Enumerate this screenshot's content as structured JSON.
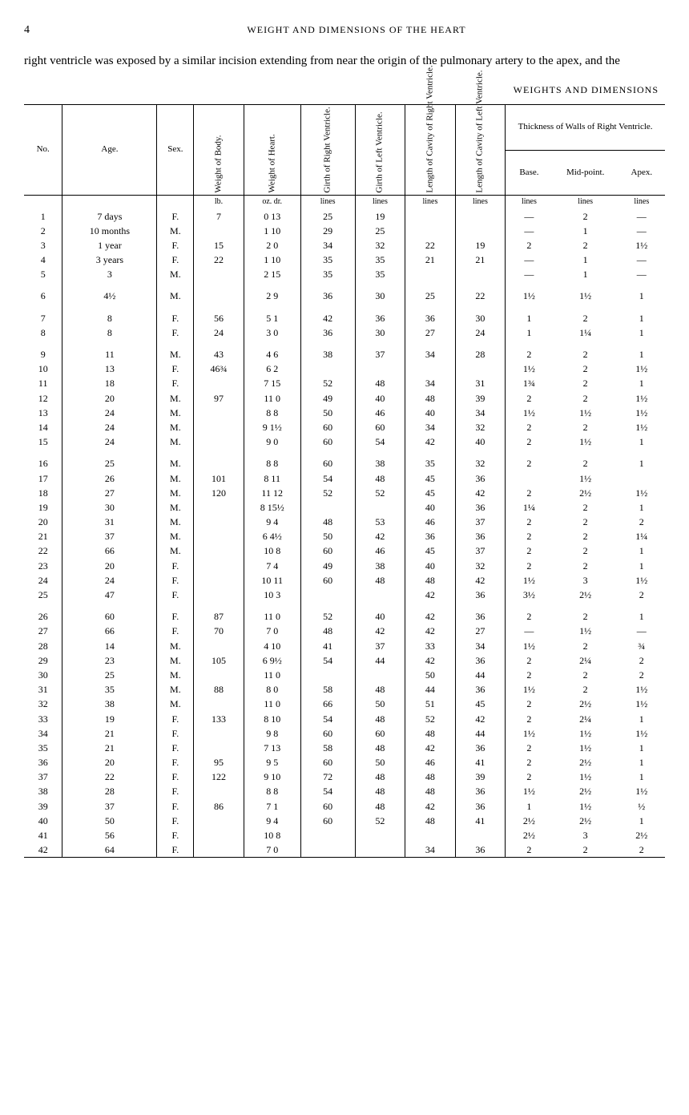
{
  "page_number": "4",
  "running_head": "WEIGHT AND DIMENSIONS OF THE HEART",
  "paragraph": "right ventricle was exposed by a similar incision extending from near the origin of the pulmonary artery to the apex, and the",
  "table_title": "WEIGHTS AND DIMENSIONS",
  "columns": {
    "no": "No.",
    "age": "Age.",
    "sex": "Sex.",
    "wbody": "Weight of Body.",
    "wheart": "Weight of Heart.",
    "girth_r": "Girth of Right Ventricle.",
    "girth_l": "Girth of Left Ventricle.",
    "len_r": "Length of Cavity of Right Ventricle.",
    "len_l": "Length of Cavity of Left Ventricle.",
    "thick_group": "Thickness of Walls of Right Ventricle.",
    "base": "Base.",
    "mid": "Mid-point.",
    "apex": "Apex."
  },
  "units": {
    "wbody": "lb.",
    "wheart": "oz.  dr.",
    "girth_r": "lines",
    "girth_l": "lines",
    "len_r": "lines",
    "len_l": "lines",
    "base": "lines",
    "mid": "lines",
    "apex": "lines"
  },
  "groups": [
    [
      {
        "no": "1",
        "age": "7 days",
        "sex": "F.",
        "wbody": "7",
        "wheart": "0 13",
        "gr": "25",
        "gl": "19",
        "lr": "",
        "ll": "",
        "base": "—",
        "mid": "2",
        "apex": "—"
      },
      {
        "no": "2",
        "age": "10 months",
        "sex": "M.",
        "wbody": "",
        "wheart": "1 10",
        "gr": "29",
        "gl": "25",
        "lr": "",
        "ll": "",
        "base": "—",
        "mid": "1",
        "apex": "—"
      },
      {
        "no": "3",
        "age": "1 year",
        "sex": "F.",
        "wbody": "15",
        "wheart": "2  0",
        "gr": "34",
        "gl": "32",
        "lr": "22",
        "ll": "19",
        "base": "2",
        "mid": "2",
        "apex": "1½"
      },
      {
        "no": "4",
        "age": "3 years",
        "sex": "F.",
        "wbody": "22",
        "wheart": "1 10",
        "gr": "35",
        "gl": "35",
        "lr": "21",
        "ll": "21",
        "base": "—",
        "mid": "1",
        "apex": "—"
      },
      {
        "no": "5",
        "age": "3",
        "sex": "M.",
        "wbody": "",
        "wheart": "2 15",
        "gr": "35",
        "gl": "35",
        "lr": "",
        "ll": "",
        "base": "—",
        "mid": "1",
        "apex": "—"
      }
    ],
    [
      {
        "no": "6",
        "age": "4½",
        "sex": "M.",
        "wbody": "",
        "wheart": "2  9",
        "gr": "36",
        "gl": "30",
        "lr": "25",
        "ll": "22",
        "base": "1½",
        "mid": "1½",
        "apex": "1"
      }
    ],
    [
      {
        "no": "7",
        "age": "8",
        "sex": "F.",
        "wbody": "56",
        "wheart": "5  1",
        "gr": "42",
        "gl": "36",
        "lr": "36",
        "ll": "30",
        "base": "1",
        "mid": "2",
        "apex": "1"
      },
      {
        "no": "8",
        "age": "8",
        "sex": "F.",
        "wbody": "24",
        "wheart": "3  0",
        "gr": "36",
        "gl": "30",
        "lr": "27",
        "ll": "24",
        "base": "1",
        "mid": "1¼",
        "apex": "1"
      }
    ],
    [
      {
        "no": "9",
        "age": "11",
        "sex": "M.",
        "wbody": "43",
        "wheart": "4  6",
        "gr": "38",
        "gl": "37",
        "lr": "34",
        "ll": "28",
        "base": "2",
        "mid": "2",
        "apex": "1"
      },
      {
        "no": "10",
        "age": "13",
        "sex": "F.",
        "wbody": "46¾",
        "wheart": "6  2",
        "gr": "",
        "gl": "",
        "lr": "",
        "ll": "",
        "base": "1½",
        "mid": "2",
        "apex": "1½"
      },
      {
        "no": "11",
        "age": "18",
        "sex": "F.",
        "wbody": "",
        "wheart": "7 15",
        "gr": "52",
        "gl": "48",
        "lr": "34",
        "ll": "31",
        "base": "1¾",
        "mid": "2",
        "apex": "1"
      },
      {
        "no": "12",
        "age": "20",
        "sex": "M.",
        "wbody": "97",
        "wheart": "11  0",
        "gr": "49",
        "gl": "40",
        "lr": "48",
        "ll": "39",
        "base": "2",
        "mid": "2",
        "apex": "1½"
      },
      {
        "no": "13",
        "age": "24",
        "sex": "M.",
        "wbody": "",
        "wheart": "8  8",
        "gr": "50",
        "gl": "46",
        "lr": "40",
        "ll": "34",
        "base": "1½",
        "mid": "1½",
        "apex": "1½"
      },
      {
        "no": "14",
        "age": "24",
        "sex": "M.",
        "wbody": "",
        "wheart": "9  1½",
        "gr": "60",
        "gl": "60",
        "lr": "34",
        "ll": "32",
        "base": "2",
        "mid": "2",
        "apex": "1½"
      },
      {
        "no": "15",
        "age": "24",
        "sex": "M.",
        "wbody": "",
        "wheart": "9  0",
        "gr": "60",
        "gl": "54",
        "lr": "42",
        "ll": "40",
        "base": "2",
        "mid": "1½",
        "apex": "1"
      }
    ],
    [
      {
        "no": "16",
        "age": "25",
        "sex": "M.",
        "wbody": "",
        "wheart": "8  8",
        "gr": "60",
        "gl": "38",
        "lr": "35",
        "ll": "32",
        "base": "2",
        "mid": "2",
        "apex": "1"
      },
      {
        "no": "17",
        "age": "26",
        "sex": "M.",
        "wbody": "101",
        "wheart": "8 11",
        "gr": "54",
        "gl": "48",
        "lr": "45",
        "ll": "36",
        "base": "",
        "mid": "1½",
        "apex": ""
      },
      {
        "no": "18",
        "age": "27",
        "sex": "M.",
        "wbody": "120",
        "wheart": "11 12",
        "gr": "52",
        "gl": "52",
        "lr": "45",
        "ll": "42",
        "base": "2",
        "mid": "2½",
        "apex": "1½"
      },
      {
        "no": "19",
        "age": "30",
        "sex": "M.",
        "wbody": "",
        "wheart": "8 15½",
        "gr": "",
        "gl": "",
        "lr": "40",
        "ll": "36",
        "base": "1¼",
        "mid": "2",
        "apex": "1"
      },
      {
        "no": "20",
        "age": "31",
        "sex": "M.",
        "wbody": "",
        "wheart": "9  4",
        "gr": "48",
        "gl": "53",
        "lr": "46",
        "ll": "37",
        "base": "2",
        "mid": "2",
        "apex": "2"
      },
      {
        "no": "21",
        "age": "37",
        "sex": "M.",
        "wbody": "",
        "wheart": "6  4½",
        "gr": "50",
        "gl": "42",
        "lr": "36",
        "ll": "36",
        "base": "2",
        "mid": "2",
        "apex": "1¼"
      },
      {
        "no": "22",
        "age": "66",
        "sex": "M.",
        "wbody": "",
        "wheart": "10  8",
        "gr": "60",
        "gl": "46",
        "lr": "45",
        "ll": "37",
        "base": "2",
        "mid": "2",
        "apex": "1"
      },
      {
        "no": "23",
        "age": "20",
        "sex": "F.",
        "wbody": "",
        "wheart": "7  4",
        "gr": "49",
        "gl": "38",
        "lr": "40",
        "ll": "32",
        "base": "2",
        "mid": "2",
        "apex": "1"
      },
      {
        "no": "24",
        "age": "24",
        "sex": "F.",
        "wbody": "",
        "wheart": "10 11",
        "gr": "60",
        "gl": "48",
        "lr": "48",
        "ll": "42",
        "base": "1½",
        "mid": "3",
        "apex": "1½"
      },
      {
        "no": "25",
        "age": "47",
        "sex": "F.",
        "wbody": "",
        "wheart": "10  3",
        "gr": "",
        "gl": "",
        "lr": "42",
        "ll": "36",
        "base": "3½",
        "mid": "2½",
        "apex": "2"
      }
    ],
    [
      {
        "no": "26",
        "age": "60",
        "sex": "F.",
        "wbody": "87",
        "wheart": "11  0",
        "gr": "52",
        "gl": "40",
        "lr": "42",
        "ll": "36",
        "base": "2",
        "mid": "2",
        "apex": "1"
      },
      {
        "no": "27",
        "age": "66",
        "sex": "F.",
        "wbody": "70",
        "wheart": "7  0",
        "gr": "48",
        "gl": "42",
        "lr": "42",
        "ll": "27",
        "base": "—",
        "mid": "1½",
        "apex": "—"
      },
      {
        "no": "28",
        "age": "14",
        "sex": "M.",
        "wbody": "",
        "wheart": "4 10",
        "gr": "41",
        "gl": "37",
        "lr": "33",
        "ll": "34",
        "base": "1½",
        "mid": "2",
        "apex": "¾"
      },
      {
        "no": "29",
        "age": "23",
        "sex": "M.",
        "wbody": "105",
        "wheart": "6  9½",
        "gr": "54",
        "gl": "44",
        "lr": "42",
        "ll": "36",
        "base": "2",
        "mid": "2¼",
        "apex": "2"
      },
      {
        "no": "30",
        "age": "25",
        "sex": "M.",
        "wbody": "",
        "wheart": "11  0",
        "gr": "",
        "gl": "",
        "lr": "50",
        "ll": "44",
        "base": "2",
        "mid": "2",
        "apex": "2"
      },
      {
        "no": "31",
        "age": "35",
        "sex": "M.",
        "wbody": "88",
        "wheart": "8  0",
        "gr": "58",
        "gl": "48",
        "lr": "44",
        "ll": "36",
        "base": "1½",
        "mid": "2",
        "apex": "1½"
      },
      {
        "no": "32",
        "age": "38",
        "sex": "M.",
        "wbody": "",
        "wheart": "11  0",
        "gr": "66",
        "gl": "50",
        "lr": "51",
        "ll": "45",
        "base": "2",
        "mid": "2½",
        "apex": "1½"
      },
      {
        "no": "33",
        "age": "19",
        "sex": "F.",
        "wbody": "133",
        "wheart": "8 10",
        "gr": "54",
        "gl": "48",
        "lr": "52",
        "ll": "42",
        "base": "2",
        "mid": "2¼",
        "apex": "1"
      },
      {
        "no": "34",
        "age": "21",
        "sex": "F.",
        "wbody": "",
        "wheart": "9  8",
        "gr": "60",
        "gl": "60",
        "lr": "48",
        "ll": "44",
        "base": "1½",
        "mid": "1½",
        "apex": "1½"
      },
      {
        "no": "35",
        "age": "21",
        "sex": "F.",
        "wbody": "",
        "wheart": "7 13",
        "gr": "58",
        "gl": "48",
        "lr": "42",
        "ll": "36",
        "base": "2",
        "mid": "1½",
        "apex": "1"
      },
      {
        "no": "36",
        "age": "20",
        "sex": "F.",
        "wbody": "95",
        "wheart": "9  5",
        "gr": "60",
        "gl": "50",
        "lr": "46",
        "ll": "41",
        "base": "2",
        "mid": "2½",
        "apex": "1"
      },
      {
        "no": "37",
        "age": "22",
        "sex": "F.",
        "wbody": "122",
        "wheart": "9 10",
        "gr": "72",
        "gl": "48",
        "lr": "48",
        "ll": "39",
        "base": "2",
        "mid": "1½",
        "apex": "1"
      },
      {
        "no": "38",
        "age": "28",
        "sex": "F.",
        "wbody": "",
        "wheart": "8  8",
        "gr": "54",
        "gl": "48",
        "lr": "48",
        "ll": "36",
        "base": "1½",
        "mid": "2½",
        "apex": "1½"
      },
      {
        "no": "39",
        "age": "37",
        "sex": "F.",
        "wbody": "86",
        "wheart": "7  1",
        "gr": "60",
        "gl": "48",
        "lr": "42",
        "ll": "36",
        "base": "1",
        "mid": "1½",
        "apex": "½"
      },
      {
        "no": "40",
        "age": "50",
        "sex": "F.",
        "wbody": "",
        "wheart": "9  4",
        "gr": "60",
        "gl": "52",
        "lr": "48",
        "ll": "41",
        "base": "2½",
        "mid": "2½",
        "apex": "1"
      },
      {
        "no": "41",
        "age": "56",
        "sex": "F.",
        "wbody": "",
        "wheart": "10  8",
        "gr": "",
        "gl": "",
        "lr": "",
        "ll": "",
        "base": "2½",
        "mid": "3",
        "apex": "2½"
      },
      {
        "no": "42",
        "age": "64",
        "sex": "F.",
        "wbody": "",
        "wheart": "7  0",
        "gr": "",
        "gl": "",
        "lr": "34",
        "ll": "36",
        "base": "2",
        "mid": "2",
        "apex": "2"
      }
    ]
  ]
}
